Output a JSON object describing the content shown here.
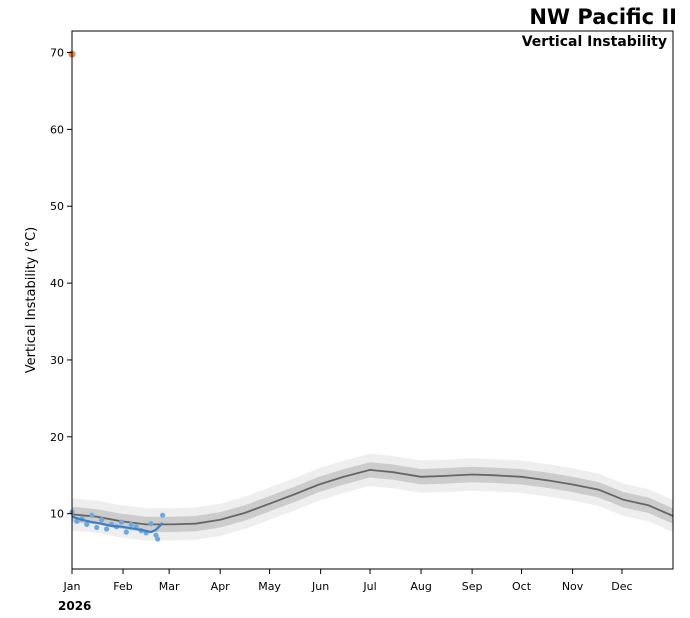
{
  "chart_data": {
    "type": "line",
    "title": "NW Pacific II",
    "subtitle": "Vertical Instability",
    "ylabel": "Vertical Instability (°C)",
    "xlabel": "",
    "year_label": "2026",
    "ylim": [
      2.8,
      72.8
    ],
    "xlim": [
      0,
      365
    ],
    "y_ticks": [
      10,
      20,
      30,
      40,
      50,
      60,
      70
    ],
    "x_ticks": [
      {
        "label": "Jan",
        "day": 0
      },
      {
        "label": "Feb",
        "day": 31
      },
      {
        "label": "Mar",
        "day": 59
      },
      {
        "label": "Apr",
        "day": 90
      },
      {
        "label": "May",
        "day": 120
      },
      {
        "label": "Jun",
        "day": 151
      },
      {
        "label": "Jul",
        "day": 181
      },
      {
        "label": "Aug",
        "day": 212
      },
      {
        "label": "Sep",
        "day": 243
      },
      {
        "label": "Oct",
        "day": 273
      },
      {
        "label": "Nov",
        "day": 304
      },
      {
        "label": "Dec",
        "day": 334
      }
    ],
    "climatology": {
      "name": "Climatological mean",
      "day": [
        0,
        15,
        30,
        45,
        60,
        75,
        90,
        105,
        120,
        135,
        150,
        165,
        181,
        195,
        212,
        225,
        243,
        255,
        273,
        290,
        304,
        320,
        335,
        350,
        365
      ],
      "mean": [
        9.9,
        9.6,
        9.0,
        8.6,
        8.6,
        8.7,
        9.2,
        10.1,
        11.3,
        12.5,
        13.8,
        14.8,
        15.7,
        15.4,
        14.8,
        14.9,
        15.1,
        15.0,
        14.8,
        14.3,
        13.8,
        13.1,
        11.8,
        11.1,
        9.7
      ],
      "band1_halfwidth": 1.0,
      "band2_halfwidth": 2.1
    },
    "current_year": {
      "name": "2026 daily",
      "day": [
        0,
        3,
        6,
        9,
        12,
        15,
        18,
        21,
        24,
        27,
        30,
        33,
        36,
        39,
        42,
        45,
        48,
        51,
        52,
        55
      ],
      "value": [
        10.2,
        9.0,
        9.3,
        8.6,
        9.8,
        8.2,
        9.2,
        8.0,
        8.6,
        8.3,
        8.9,
        7.6,
        8.6,
        8.3,
        7.8,
        7.5,
        8.7,
        7.2,
        6.7,
        9.8
      ]
    },
    "current_smooth": {
      "name": "2026 smoothed",
      "day": [
        0,
        6,
        12,
        18,
        24,
        30,
        36,
        42,
        48,
        51,
        55
      ],
      "value": [
        9.6,
        9.2,
        8.9,
        8.7,
        8.4,
        8.3,
        8.1,
        7.9,
        7.6,
        7.9,
        8.8
      ]
    },
    "extreme_point": {
      "day": 0,
      "value": 69.8
    }
  },
  "colors": {
    "band_outer": "#eeeeee",
    "band_inner": "#cccccc",
    "mean_line": "#666666",
    "current_points": "#6fa8dc",
    "current_line": "#3d7fc4",
    "extreme_point": "#e0874a"
  }
}
